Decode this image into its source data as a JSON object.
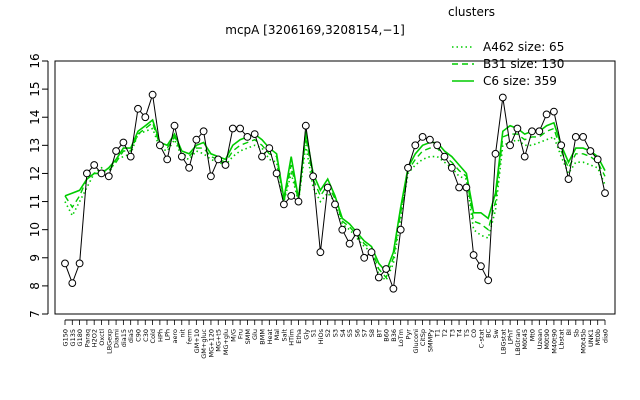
{
  "chart_data": {
    "type": "line",
    "title": "mcpA [3206169,3208154,−1]",
    "xlabel": "",
    "ylabel": "",
    "ylim": [
      7,
      16
    ],
    "y_ticks": [
      7,
      8,
      9,
      10,
      11,
      12,
      13,
      14,
      15,
      16
    ],
    "grid": false,
    "legend_position": "top-right",
    "legend_title": "clusters",
    "accent_color": "#00cc00",
    "x_tick_labels": [
      "G150",
      "G135",
      "G180",
      "Paraq",
      "H2O2",
      "Oxctl",
      "LBGexp",
      "Diami",
      "dia15",
      "dia5",
      "C90",
      "C30",
      "Cold",
      "HPh",
      "LPh",
      "aero",
      "nit",
      "ferm",
      "GM+10",
      "GM+gluc",
      "MG+120",
      "MG+t5",
      "MG+glu",
      "M/G",
      "Fru",
      "SMM",
      "Glu",
      "BMM",
      "Heat",
      "Mal",
      "Salt",
      "HTim",
      "Etha",
      "Gly",
      "S1",
      "HiOs",
      "S2",
      "S3",
      "S4",
      "S5",
      "S6",
      "S7",
      "S8",
      "BT",
      "B60",
      "B36",
      "LoTm",
      "Pyr",
      "Gluconi",
      "CitSp",
      "SMMPy",
      "T1",
      "T2",
      "T3",
      "T4",
      "T5",
      "C0",
      "C-stat",
      "BC",
      "Sw",
      "LBGstat",
      "LPhT",
      "LBGtran",
      "M0t45",
      "Mt0",
      "Uzean",
      "M0t90",
      "M40t90",
      "Lbstat",
      "BI",
      "Sb",
      "M0t45b",
      "UNK1",
      "Mt0b",
      "dia0"
    ],
    "series": [
      {
        "name": "A462 size: 65",
        "style": "dotted",
        "values": [
          11.0,
          10.5,
          11.0,
          11.5,
          12.0,
          12.2,
          12.0,
          12.5,
          12.6,
          12.7,
          13.4,
          13.5,
          13.6,
          12.9,
          12.8,
          13.2,
          12.6,
          12.5,
          12.8,
          12.7,
          12.5,
          12.4,
          12.3,
          12.6,
          12.8,
          12.9,
          13.0,
          12.9,
          12.5,
          12.4,
          11.0,
          12.0,
          11.0,
          13.0,
          11.5,
          11.0,
          11.3,
          11.0,
          10.2,
          10.0,
          9.7,
          9.4,
          9.2,
          8.4,
          8.2,
          8.8,
          10.4,
          12.0,
          12.3,
          12.5,
          12.6,
          12.6,
          12.4,
          12.2,
          11.9,
          11.8,
          10.0,
          9.8,
          9.7,
          10.7,
          13.0,
          13.1,
          13.2,
          13.0,
          13.0,
          13.1,
          13.2,
          13.3,
          12.6,
          12.0,
          12.4,
          12.4,
          12.3,
          12.2,
          11.6
        ]
      },
      {
        "name": "B31 size: 130",
        "style": "dashed",
        "values": [
          11.2,
          10.8,
          11.2,
          11.8,
          12.0,
          12.1,
          12.1,
          12.4,
          12.8,
          12.8,
          13.4,
          13.6,
          13.8,
          13.0,
          12.9,
          13.3,
          12.7,
          12.6,
          12.9,
          12.9,
          12.6,
          12.5,
          12.4,
          12.8,
          13.0,
          13.1,
          13.2,
          13.0,
          12.7,
          12.6,
          11.0,
          12.3,
          11.0,
          13.3,
          11.8,
          11.2,
          11.6,
          11.1,
          10.3,
          10.1,
          9.8,
          9.5,
          9.3,
          8.6,
          8.3,
          9.0,
          10.6,
          12.1,
          12.5,
          12.8,
          12.9,
          12.9,
          12.6,
          12.4,
          12.1,
          11.9,
          10.3,
          10.2,
          10.0,
          11.0,
          13.3,
          13.4,
          13.4,
          13.2,
          13.3,
          13.3,
          13.5,
          13.6,
          12.8,
          12.2,
          12.7,
          12.7,
          12.6,
          12.4,
          11.9
        ]
      },
      {
        "name": "C6 size: 359",
        "style": "solid",
        "values": [
          11.2,
          11.3,
          11.4,
          11.8,
          12.0,
          12.0,
          12.2,
          12.5,
          12.9,
          12.9,
          13.5,
          13.7,
          13.9,
          13.1,
          13.0,
          13.4,
          12.8,
          12.7,
          13.0,
          13.1,
          12.7,
          12.6,
          12.5,
          13.0,
          13.2,
          13.3,
          13.4,
          13.2,
          12.9,
          12.7,
          11.1,
          12.6,
          11.1,
          13.5,
          12.0,
          11.4,
          11.8,
          11.2,
          10.4,
          10.2,
          9.9,
          9.6,
          9.4,
          8.8,
          8.5,
          9.2,
          10.8,
          12.2,
          12.7,
          13.0,
          13.1,
          13.1,
          12.8,
          12.6,
          12.3,
          12.0,
          10.6,
          10.6,
          10.4,
          11.3,
          13.5,
          13.7,
          13.6,
          13.4,
          13.5,
          13.5,
          13.7,
          13.8,
          13.0,
          12.4,
          12.9,
          12.9,
          12.8,
          12.6,
          12.1
        ]
      }
    ],
    "points": {
      "name": "mcpA",
      "values": [
        8.8,
        8.1,
        8.8,
        12.0,
        12.3,
        12.0,
        11.9,
        12.8,
        13.1,
        12.6,
        14.3,
        14.0,
        14.8,
        13.0,
        12.5,
        13.7,
        12.6,
        12.2,
        13.2,
        13.5,
        11.9,
        12.5,
        12.3,
        13.6,
        13.6,
        13.3,
        13.4,
        12.6,
        12.9,
        12.0,
        10.9,
        11.2,
        11.0,
        13.7,
        11.9,
        9.2,
        11.5,
        10.9,
        10.0,
        9.5,
        9.9,
        9.0,
        9.2,
        8.3,
        8.6,
        7.9,
        10.0,
        12.2,
        13.0,
        13.3,
        13.2,
        13.0,
        12.6,
        12.2,
        11.5,
        11.5,
        9.1,
        8.7,
        8.2,
        12.7,
        14.7,
        13.0,
        13.6,
        12.6,
        13.5,
        13.5,
        14.1,
        14.2,
        13.0,
        11.8,
        13.3,
        13.3,
        12.8,
        12.5,
        11.3
      ]
    }
  }
}
